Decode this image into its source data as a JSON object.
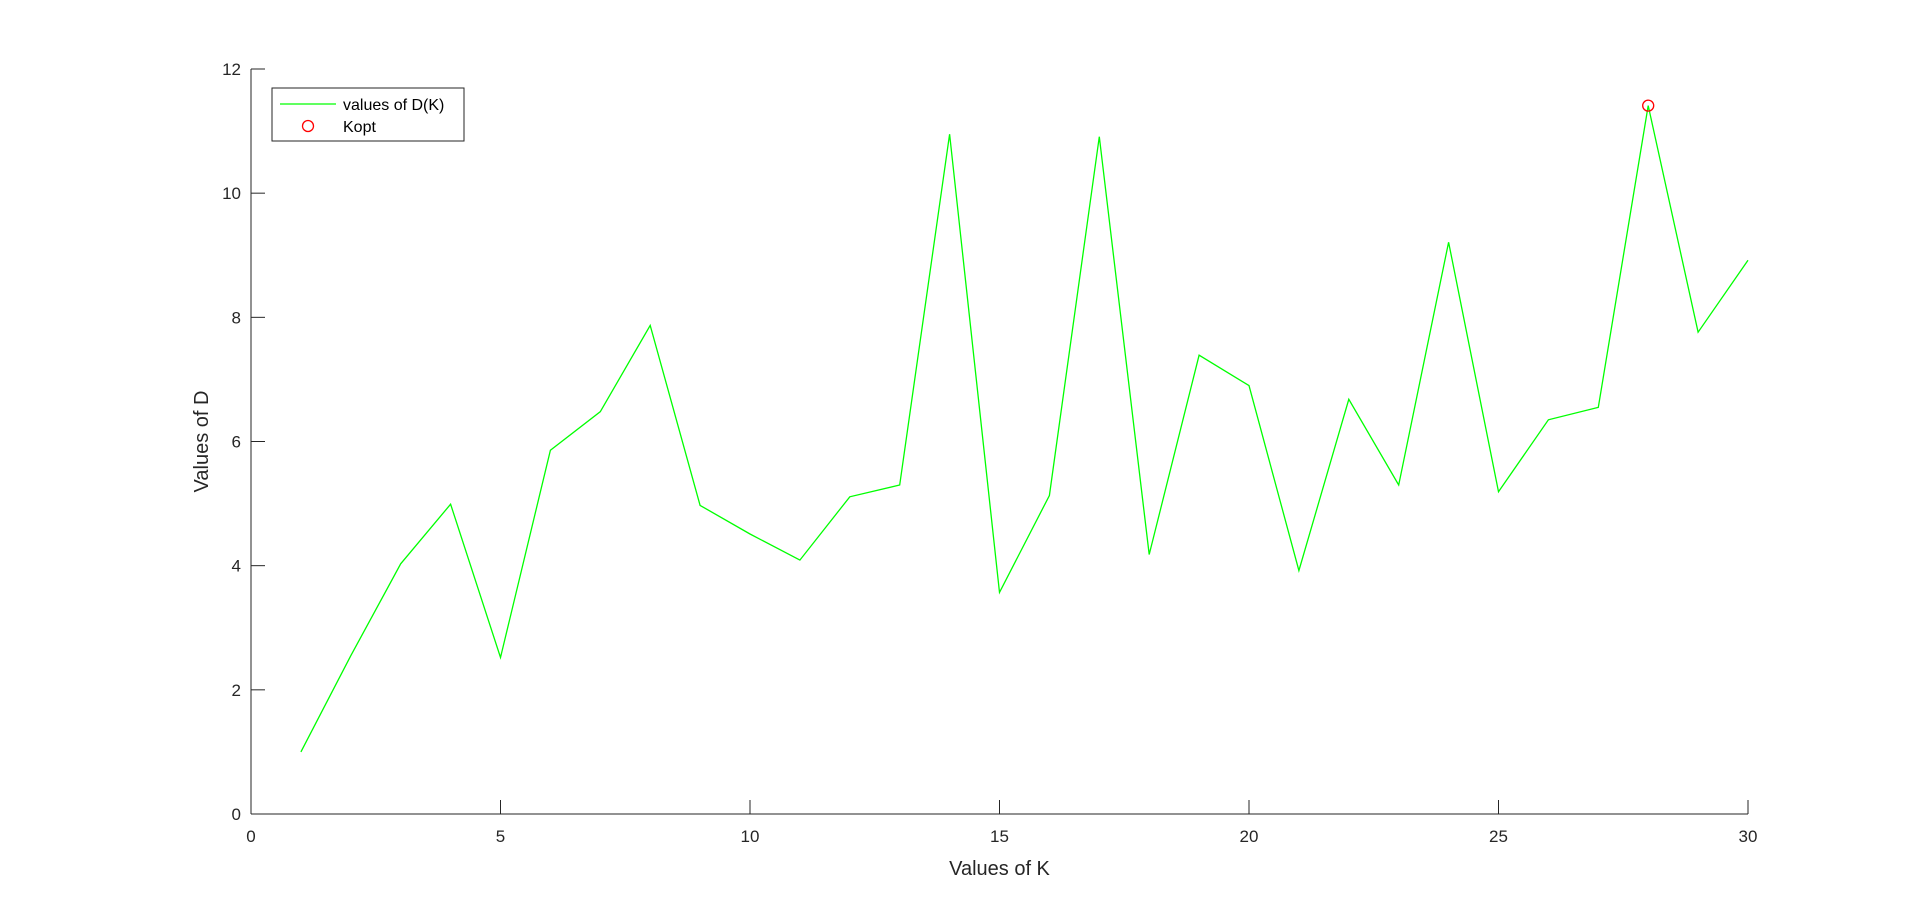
{
  "chart_data": {
    "type": "line",
    "title": "",
    "xlabel": "Values of K",
    "ylabel": "Values of D",
    "xlim": [
      0,
      30
    ],
    "ylim": [
      0,
      12
    ],
    "xticks": [
      0,
      5,
      10,
      15,
      20,
      25,
      30
    ],
    "yticks": [
      0,
      2,
      4,
      6,
      8,
      10,
      12
    ],
    "grid": false,
    "legend_position": "top-left",
    "series": [
      {
        "name": "values of D(K)",
        "style": "line",
        "color": "#00ff00",
        "x": [
          1,
          2,
          3,
          4,
          5,
          6,
          7,
          8,
          9,
          10,
          11,
          12,
          13,
          14,
          15,
          16,
          17,
          18,
          19,
          20,
          21,
          22,
          23,
          24,
          25,
          26,
          27,
          28,
          29,
          30
        ],
        "y": [
          1.0,
          2.55,
          4.03,
          4.99,
          2.52,
          5.86,
          6.48,
          7.87,
          4.97,
          4.51,
          4.09,
          5.11,
          5.3,
          10.95,
          3.57,
          5.13,
          10.91,
          4.18,
          7.39,
          6.9,
          3.92,
          6.68,
          5.3,
          9.21,
          5.19,
          6.35,
          6.55,
          11.41,
          7.76,
          8.92
        ]
      },
      {
        "name": "Kopt",
        "style": "marker-circle",
        "color": "#ff0000",
        "x": [
          28
        ],
        "y": [
          11.41
        ]
      }
    ]
  }
}
